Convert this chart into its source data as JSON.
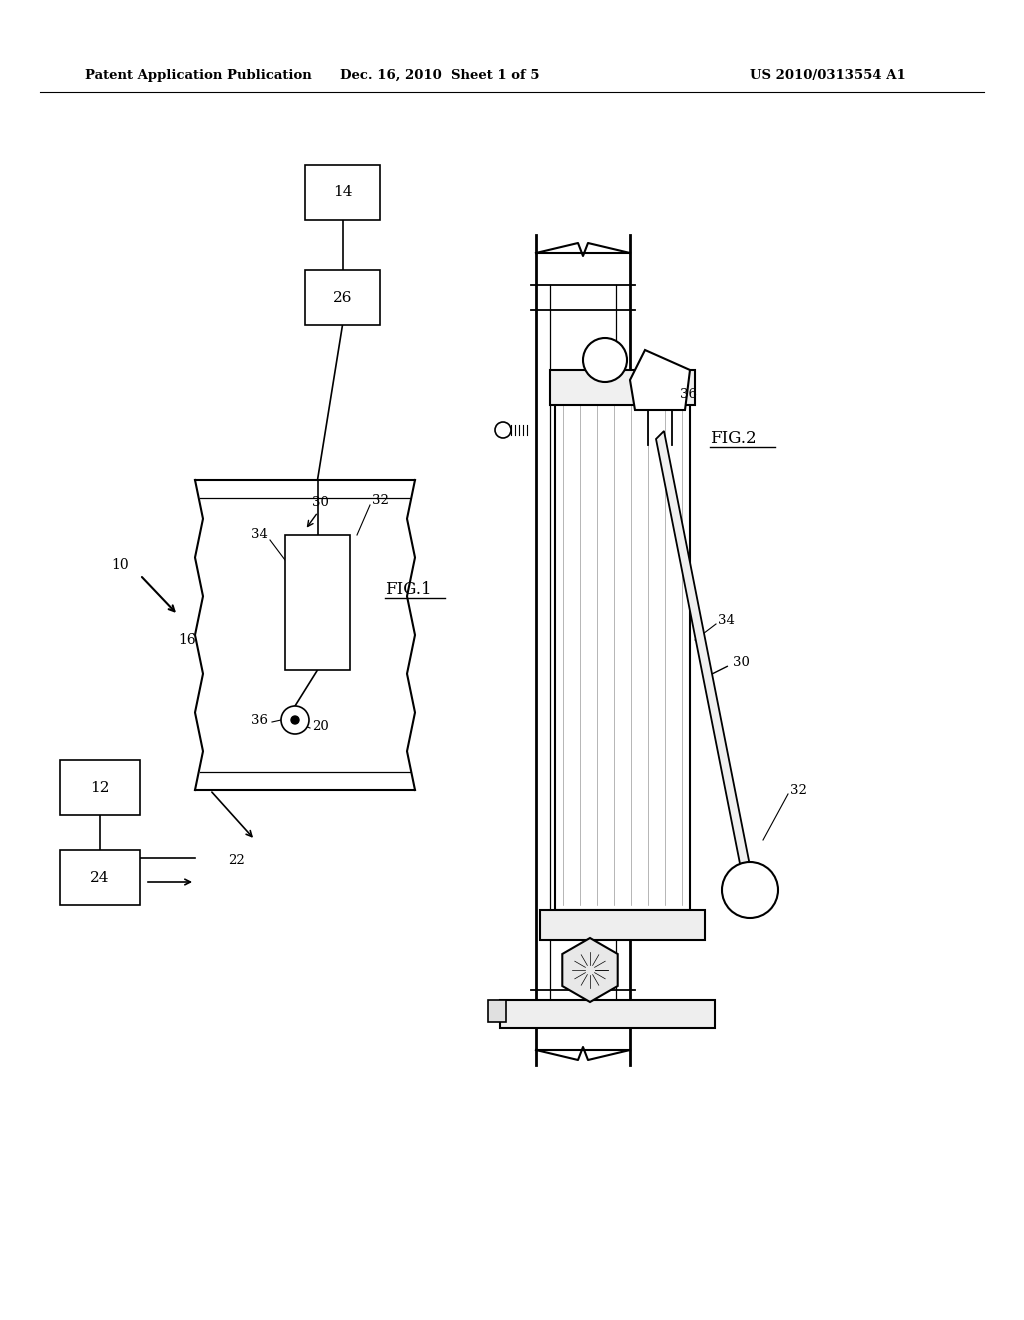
{
  "background_color": "#ffffff",
  "header_left": "Patent Application Publication",
  "header_center": "Dec. 16, 2010  Sheet 1 of 5",
  "header_right": "US 2010/0313554 A1",
  "fig1_label": "FIG.1",
  "fig2_label": "FIG.2"
}
